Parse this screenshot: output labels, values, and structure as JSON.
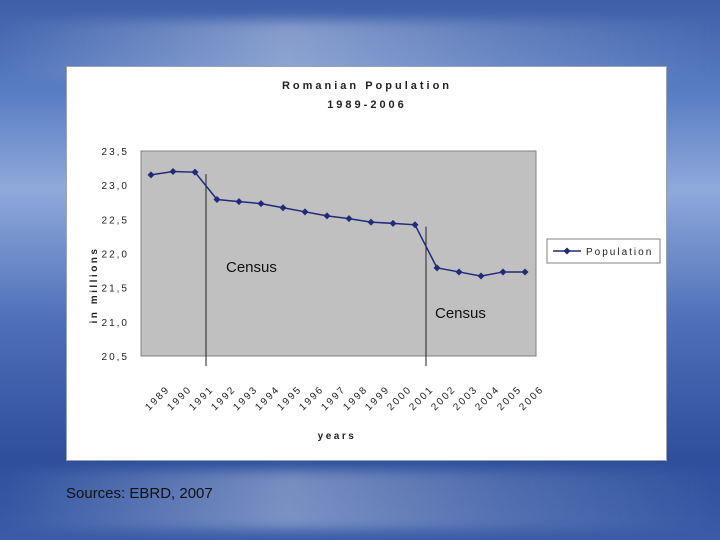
{
  "chart_data": {
    "type": "line",
    "title": "Romanian Population",
    "subtitle": "1989-2006",
    "xlabel": "years",
    "ylabel": "in millions",
    "ylim": [
      20.5,
      23.5
    ],
    "ytick_labels": [
      "23,5",
      "23,0",
      "22,5",
      "22,0",
      "21,5",
      "21,0",
      "20,5"
    ],
    "ytick_values": [
      23.5,
      23.0,
      22.5,
      22.0,
      21.5,
      21.0,
      20.5
    ],
    "categories": [
      "1989",
      "1990",
      "1991",
      "1992",
      "1993",
      "1994",
      "1995",
      "1996",
      "1997",
      "1998",
      "1999",
      "2000",
      "2001",
      "2002",
      "2003",
      "2004",
      "2005",
      "2006"
    ],
    "series": [
      {
        "name": "Population",
        "color": "#1f2a7a",
        "values": [
          23.15,
          23.2,
          23.19,
          22.79,
          22.76,
          22.73,
          22.67,
          22.61,
          22.55,
          22.51,
          22.46,
          22.44,
          22.42,
          21.79,
          21.73,
          21.67,
          21.73,
          21.73
        ]
      }
    ],
    "annotations": [
      {
        "text": "Census",
        "x": "1992"
      },
      {
        "text": "Census",
        "x": "2002"
      }
    ],
    "plot_background": "#c0c0c0",
    "grid": false,
    "legend_position": "right"
  },
  "source_note": "Sources: EBRD, 2007"
}
